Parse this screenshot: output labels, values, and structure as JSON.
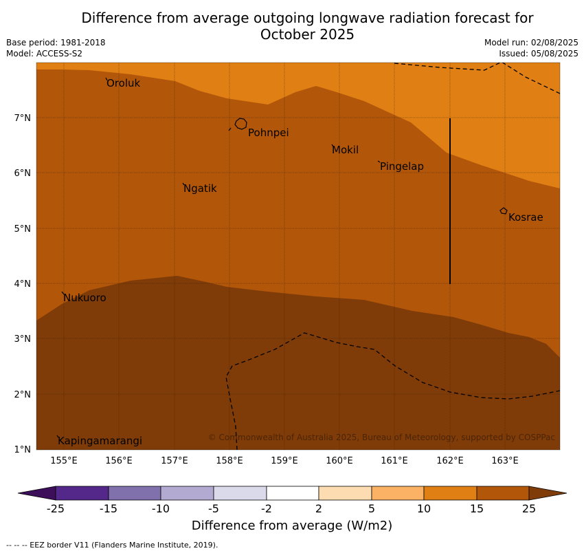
{
  "header": {
    "title_line1": "Difference from average outgoing longwave radiation forecast for",
    "title_line2": "October 2025",
    "base_period": "Base period: 1981-2018",
    "model": "Model: ACCESS-S2",
    "model_run": "Model run: 02/08/2025",
    "issued": "Issued: 05/08/2025"
  },
  "map": {
    "copyright": "© Commonwealth of Australia 2025, Bureau of Meteorology, supported by COSPPac",
    "lon_ticks": [
      "155°E",
      "156°E",
      "157°E",
      "158°E",
      "159°E",
      "160°E",
      "161°E",
      "162°E",
      "163°E"
    ],
    "lat_ticks": [
      "7°N",
      "6°N",
      "5°N",
      "4°N",
      "3°N",
      "2°N",
      "1°N"
    ],
    "places": [
      "Oroluk",
      "Pohnpei",
      "Mokil",
      "Pingelap",
      "Ngatik",
      "Kosrae",
      "Nukuoro",
      "Kapingamarangi"
    ],
    "regions": [
      {
        "category": "10 to 15",
        "color": "#e07f14"
      },
      {
        "category": "15 to 25",
        "color": "#b2570a"
      },
      {
        "category": "above 25",
        "color": "#7f3c08"
      }
    ]
  },
  "colorbar": {
    "label": "Difference from average (W/m2)",
    "ticks": [
      "-25",
      "-15",
      "-10",
      "-5",
      "-2",
      "2",
      "5",
      "10",
      "15",
      "25"
    ],
    "colors": [
      "#3d0f5a",
      "#54288a",
      "#8070ac",
      "#b3aad2",
      "#dadaeb",
      "#ffffff",
      "#fddcb2",
      "#fbb265",
      "#e07f14",
      "#b2570a",
      "#7f3c08"
    ]
  },
  "legend": {
    "eez_note": "--  --  -- EEZ border V11 (Flanders Marine Institute, 2019)."
  }
}
